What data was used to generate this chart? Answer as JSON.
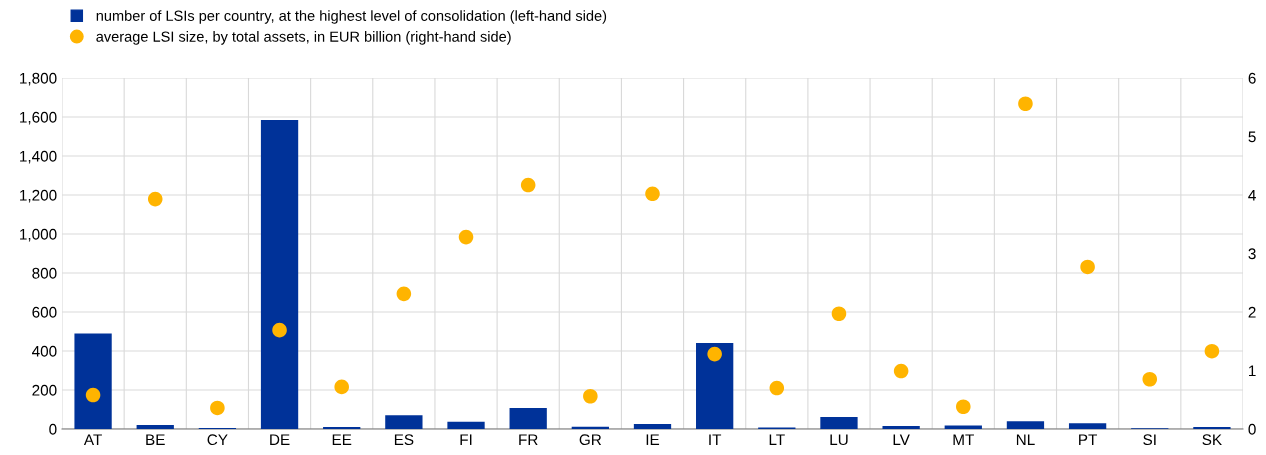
{
  "chart_data": {
    "type": "bar",
    "categories": [
      "AT",
      "BE",
      "CY",
      "DE",
      "EE",
      "ES",
      "FI",
      "FR",
      "GR",
      "IE",
      "IT",
      "LT",
      "LU",
      "LV",
      "MT",
      "NL",
      "PT",
      "SI",
      "SK"
    ],
    "series": [
      {
        "name": "number of LSIs per country, at the highest level of consolidation (left-hand side)",
        "color": "#003299",
        "values": [
          490,
          20,
          5,
          1585,
          10,
          70,
          37,
          108,
          12,
          25,
          441,
          8,
          62,
          15,
          18,
          40,
          30,
          4,
          10
        ]
      },
      {
        "name": "average LSI size, by total assets, in EUR billion (right-hand side)",
        "type": "scatter",
        "axis": "y2",
        "color": "#ffb400",
        "values": [
          0.58,
          3.93,
          0.36,
          1.69,
          0.72,
          2.31,
          3.28,
          4.17,
          0.56,
          4.02,
          1.28,
          0.7,
          1.97,
          0.99,
          0.38,
          5.56,
          2.77,
          0.85,
          1.33
        ]
      }
    ],
    "ylim": [
      0,
      1800
    ],
    "yticks": [
      0,
      {
        "value": 200,
        "label": "200"
      },
      {
        "value": 400,
        "label": "400"
      },
      {
        "value": 600,
        "label": "600"
      },
      {
        "value": 800,
        "label": "800"
      },
      {
        "value": 1000,
        "label": "1,000"
      },
      {
        "value": 1200,
        "label": "1,200"
      },
      {
        "value": 1400,
        "label": "1,400"
      },
      {
        "value": 1600,
        "label": "1,600"
      },
      {
        "value": 1800,
        "label": "1,800"
      }
    ],
    "y2lim": [
      0,
      6
    ],
    "y2ticks": [
      0,
      1,
      2,
      3,
      4,
      5,
      6
    ],
    "grid": true,
    "legend": "top left",
    "marker": "circle"
  }
}
